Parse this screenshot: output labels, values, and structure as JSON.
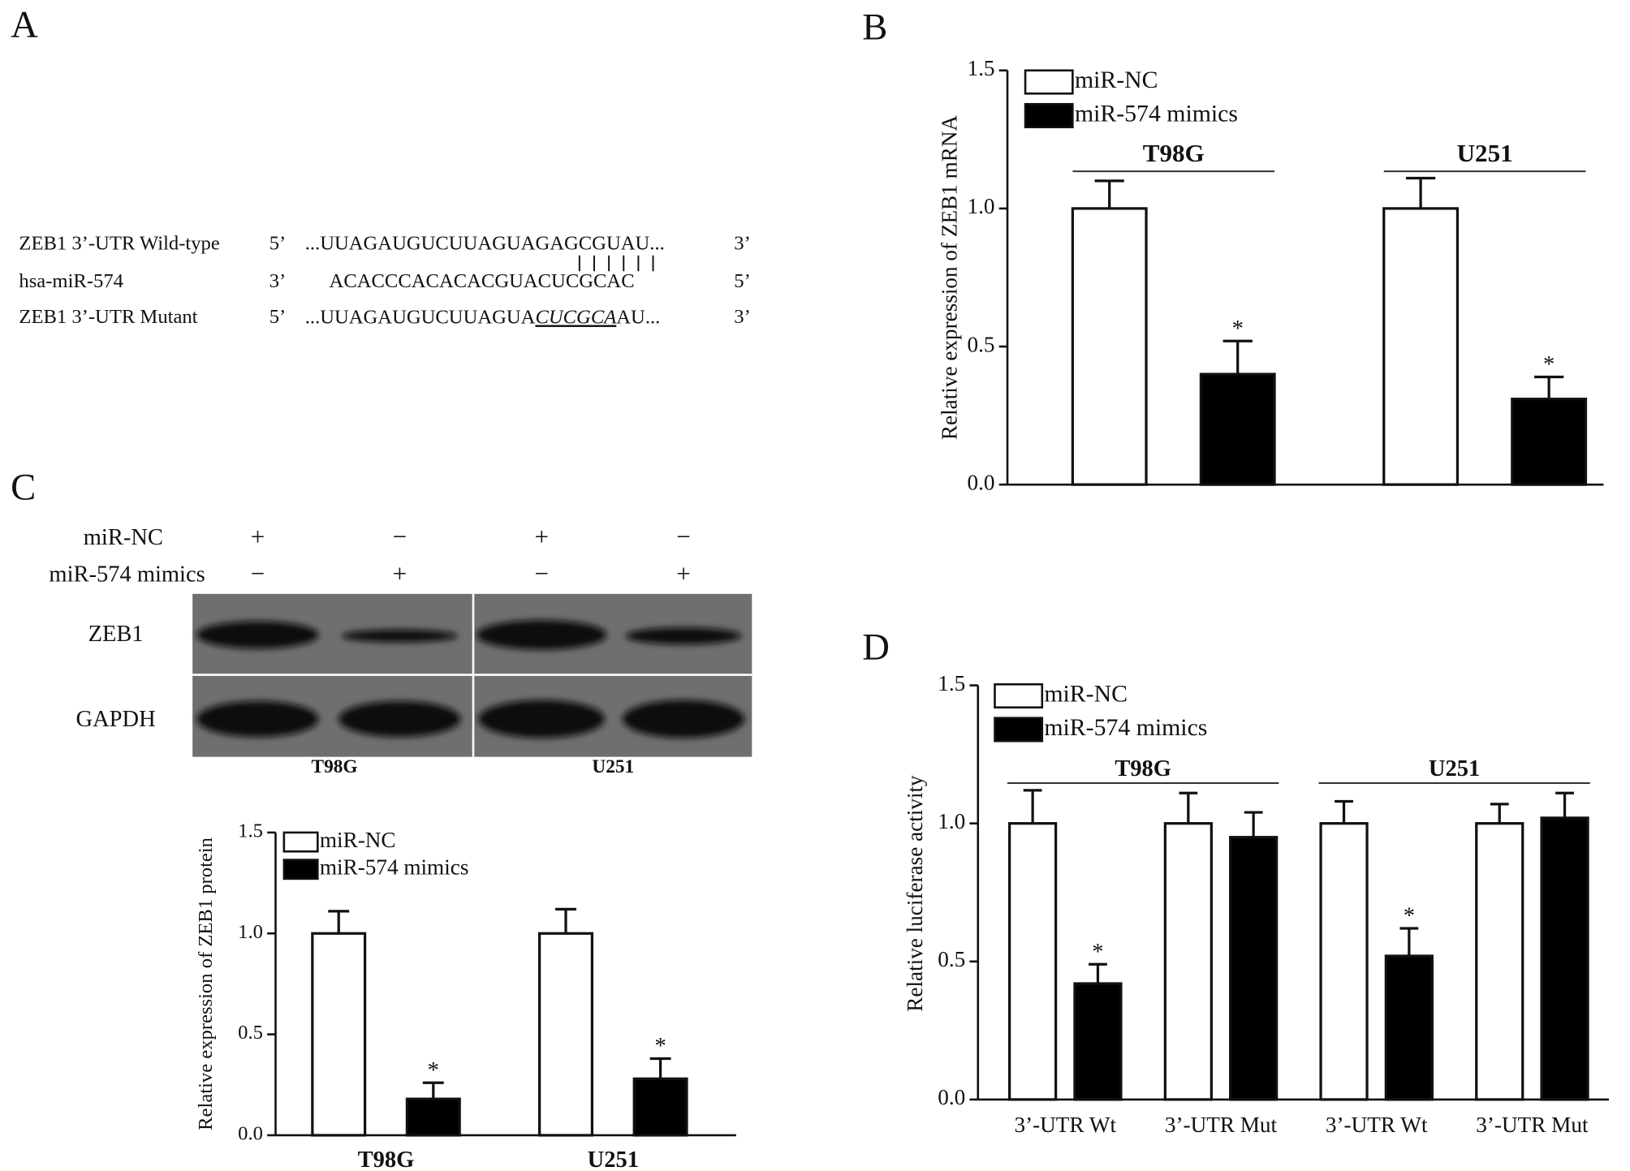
{
  "panel_labels": [
    "A",
    "B",
    "C",
    "D"
  ],
  "sequence_alignment": {
    "rows": [
      {
        "name": "ZEB1 3’-UTR Wild-type",
        "end5": "5’",
        "sequence": "...UUAGAUGUCUUAGUAGAGCGUAU...",
        "end3": "3’"
      },
      {
        "name": "hsa-miR-574",
        "end5": "3’",
        "sequence": "ACACCCACACACGUACUCGCAC",
        "end3": "5’"
      },
      {
        "name": "ZEB1 3’-UTR Mutant",
        "end5": "5’",
        "sequence_parts": [
          "...UUAGAUGUCUUAGUA",
          "CUCGCA",
          "AU..."
        ],
        "end3": "3’"
      }
    ]
  },
  "blot": {
    "treatments": [
      {
        "name": "miR-NC",
        "signs": [
          "+",
          "−",
          "+",
          "−"
        ]
      },
      {
        "name": "miR-574 mimics",
        "signs": [
          "−",
          "+",
          "−",
          "+"
        ]
      }
    ],
    "proteins": [
      "ZEB1",
      "GAPDH"
    ],
    "cell_lines": [
      "T98G",
      "U251"
    ]
  },
  "chart_data": [
    {
      "type": "bar",
      "ylabel": "Relative expression of ZEB1 mRNA",
      "categories": [
        "T98G",
        "U251"
      ],
      "category_labels": "top",
      "series": [
        {
          "name": "miR-NC",
          "color": "#ffffff",
          "values": [
            1.0,
            1.0
          ],
          "errors": [
            0.1,
            0.11
          ]
        },
        {
          "name": "miR-574 mimics",
          "color": "#000000",
          "values": [
            0.4,
            0.31
          ],
          "errors": [
            0.12,
            0.08
          ]
        }
      ],
      "ylim": [
        0,
        1.5
      ],
      "yticks": [
        {
          "value": 0,
          "label": "0.0"
        },
        0.5,
        {
          "value": 1,
          "label": "1.0"
        },
        1.5
      ],
      "legend": "upper left",
      "annotations": [
        {
          "text": "*",
          "series": 1,
          "category": 0
        },
        {
          "text": "*",
          "series": 1,
          "category": 1
        }
      ]
    },
    {
      "type": "bar",
      "ylabel": "Relative expression of ZEB1 protein",
      "categories": [
        "T98G",
        "U251"
      ],
      "category_labels": "bottom",
      "series": [
        {
          "name": "miR-NC",
          "color": "#ffffff",
          "values": [
            1.0,
            1.0
          ],
          "errors": [
            0.11,
            0.12
          ]
        },
        {
          "name": "miR-574 mimics",
          "color": "#000000",
          "values": [
            0.18,
            0.28
          ],
          "errors": [
            0.08,
            0.1
          ]
        }
      ],
      "ylim": [
        0,
        1.5
      ],
      "yticks": [
        {
          "value": 0,
          "label": "0.0"
        },
        0.5,
        {
          "value": 1,
          "label": "1.0"
        },
        1.5
      ],
      "legend": "upper left",
      "annotations": [
        {
          "text": "*",
          "series": 1,
          "category": 0
        },
        {
          "text": "*",
          "series": 1,
          "category": 1
        }
      ]
    },
    {
      "type": "bar",
      "ylabel": "Relative luciferase activity",
      "categories": [
        "3’-UTR Wt",
        "3’-UTR Mut",
        "3’-UTR Wt",
        "3’-UTR Mut"
      ],
      "category_labels": "bottom",
      "groups": [
        {
          "name": "T98G",
          "size": 2
        },
        {
          "name": "U251",
          "size": 2
        }
      ],
      "series": [
        {
          "name": "miR-NC",
          "color": "#ffffff",
          "values": [
            1.0,
            1.0,
            1.0,
            1.0
          ],
          "errors": [
            0.12,
            0.11,
            0.08,
            0.07
          ]
        },
        {
          "name": "miR-574 mimics",
          "color": "#000000",
          "values": [
            0.42,
            0.95,
            0.52,
            1.02
          ],
          "errors": [
            0.07,
            0.09,
            0.1,
            0.09
          ]
        }
      ],
      "ylim": [
        0,
        1.5
      ],
      "yticks": [
        {
          "value": 0,
          "label": "0.0"
        },
        0.5,
        {
          "value": 1,
          "label": "1.0"
        },
        1.5
      ],
      "legend": "upper left",
      "annotations": [
        {
          "text": "*",
          "series": 1,
          "category": 0
        },
        {
          "text": "*",
          "series": 1,
          "category": 2
        }
      ]
    }
  ]
}
